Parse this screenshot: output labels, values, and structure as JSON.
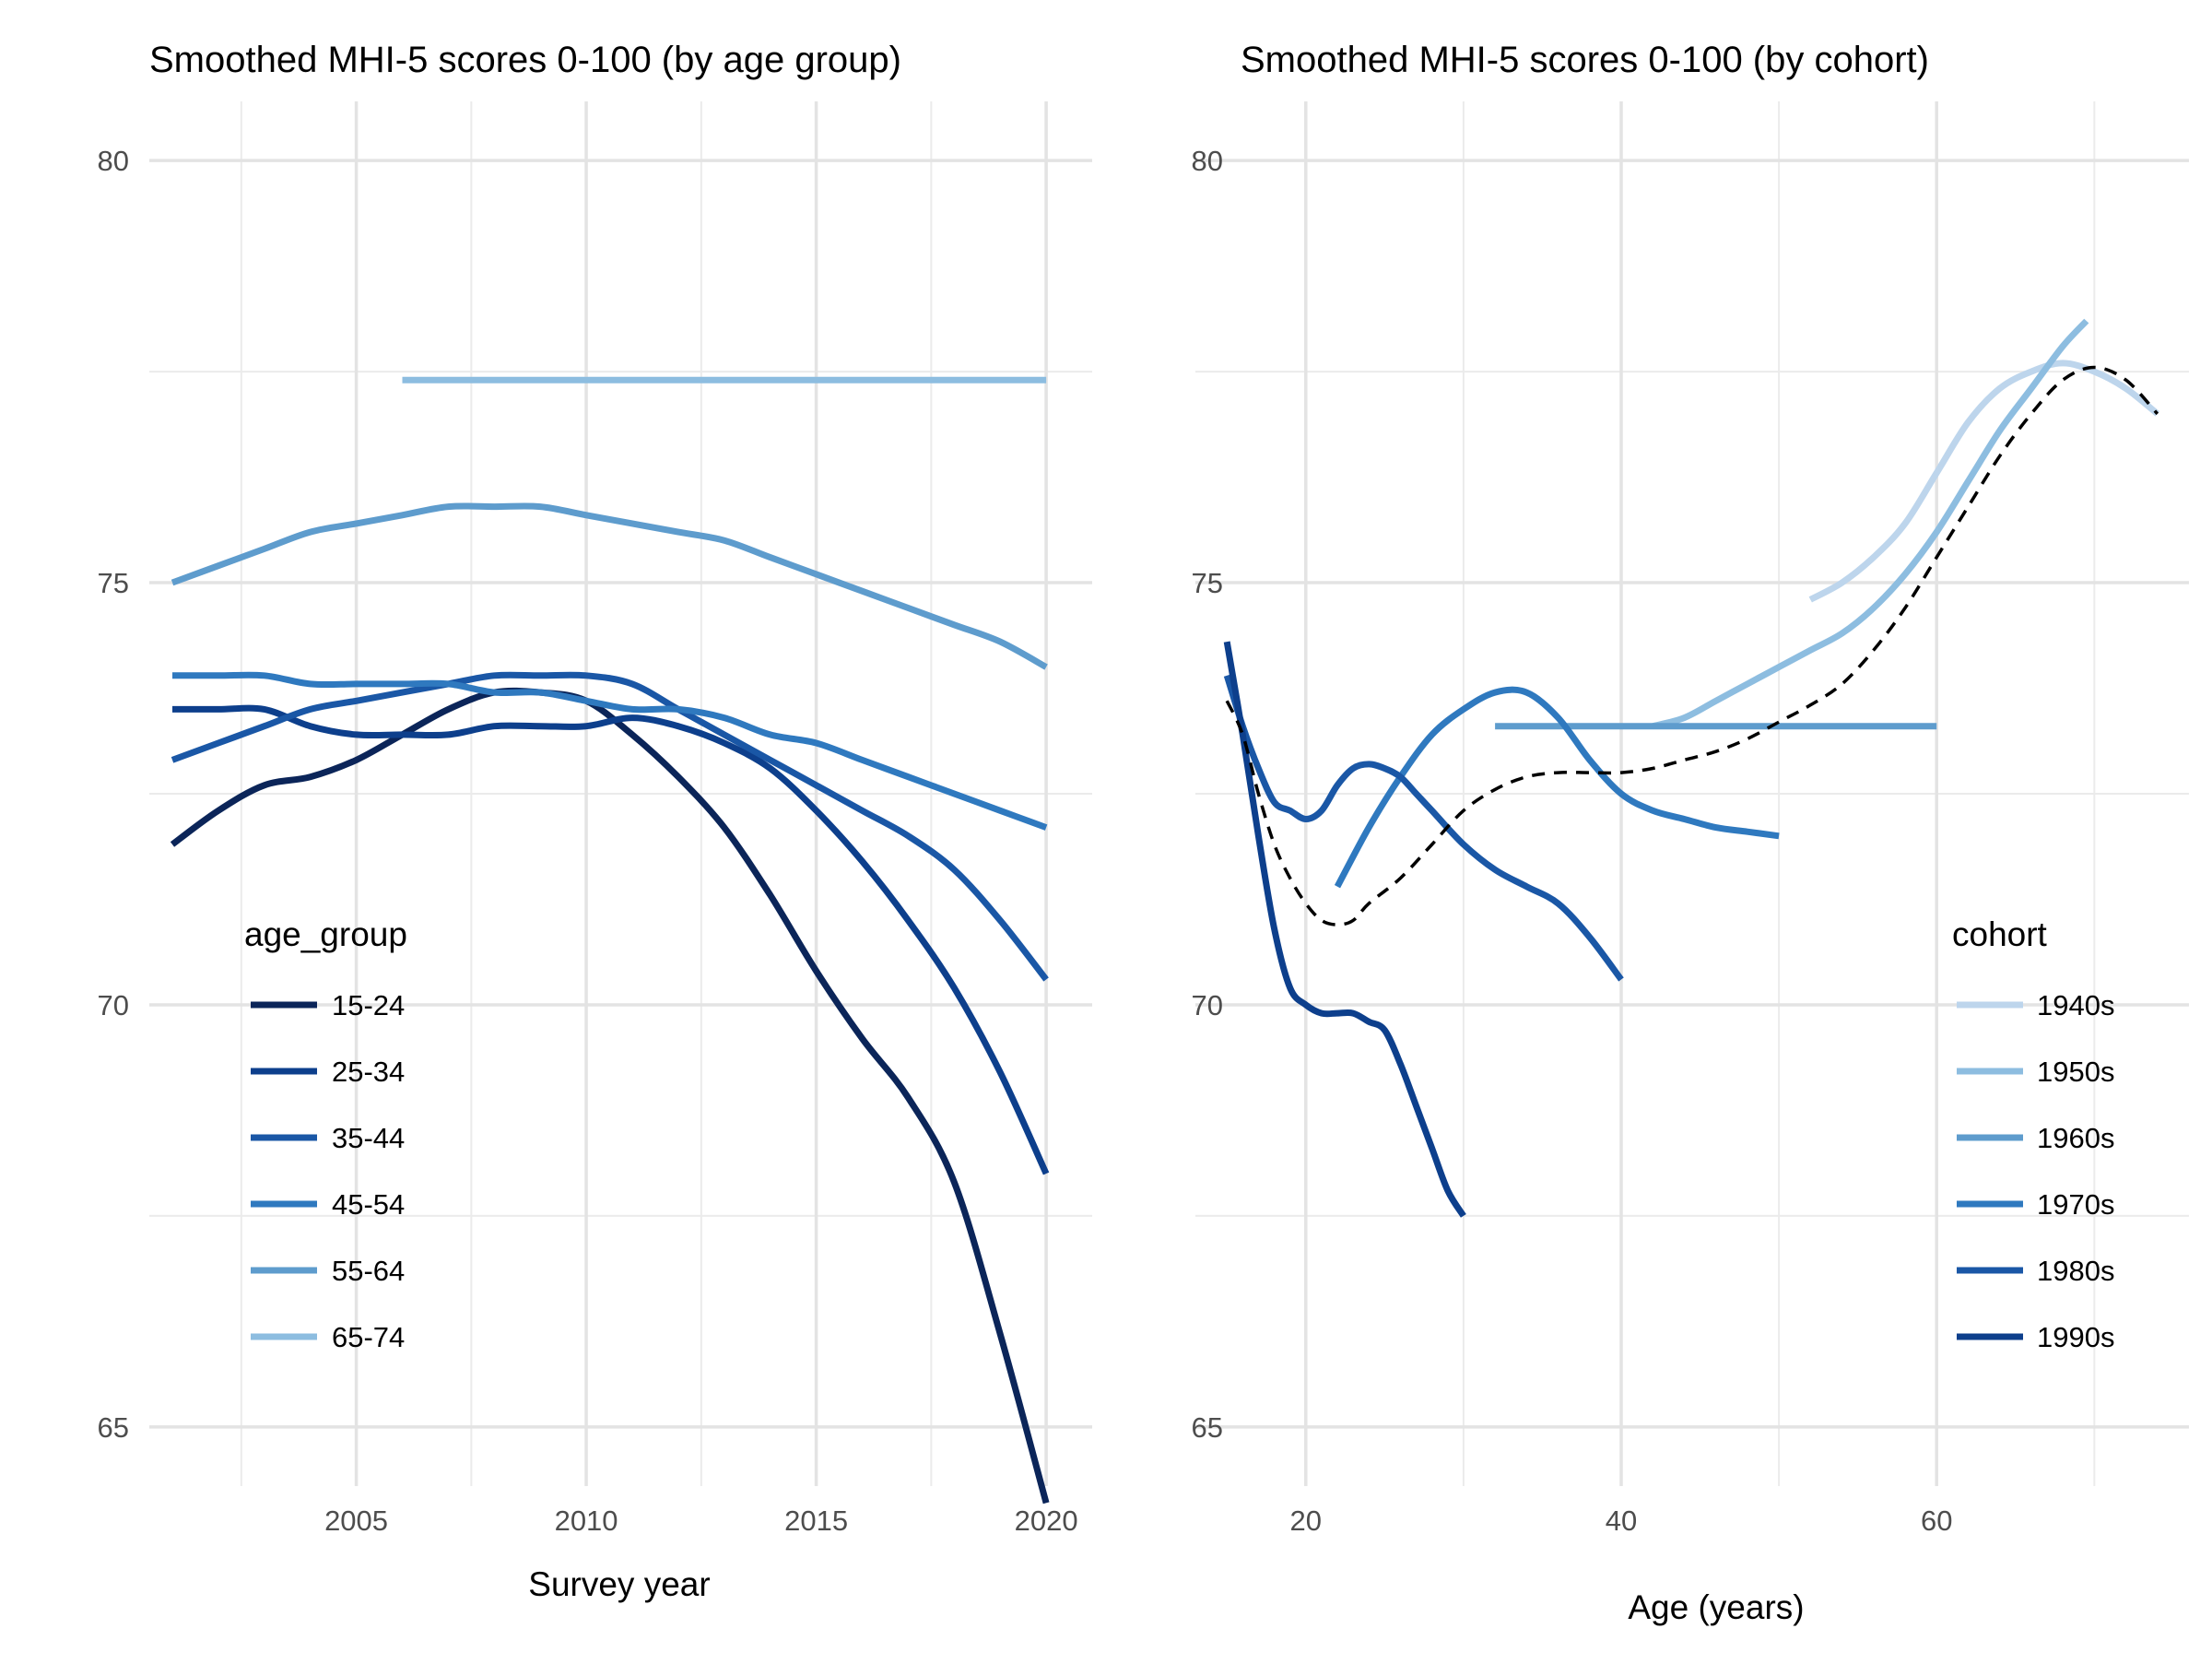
{
  "chart_data": [
    {
      "type": "line",
      "title": "Smoothed MHI-5 scores 0-100 (by age group)",
      "xlabel": "Survey year",
      "ylabel": "",
      "xlim": [
        2000.5,
        2021
      ],
      "ylim": [
        64.3,
        80.7
      ],
      "x_ticks": [
        "2005",
        "2010",
        "2015",
        "2020"
      ],
      "x_tick_values": [
        2005,
        2010,
        2015,
        2020
      ],
      "y_ticks": [
        "65",
        "70",
        "75",
        "80"
      ],
      "y_tick_values": [
        65,
        70,
        75,
        80
      ],
      "grid": true,
      "legend": {
        "title": "age_group",
        "position": "left-bottom"
      },
      "series": [
        {
          "name": "15-24",
          "color": "#0b2559",
          "dashed": false,
          "points": [
            [
              2001,
              71.9
            ],
            [
              2002,
              72.3
            ],
            [
              2003,
              72.6
            ],
            [
              2004,
              72.7
            ],
            [
              2005,
              72.9
            ],
            [
              2006,
              73.2
            ],
            [
              2007,
              73.5
            ],
            [
              2008,
              73.7
            ],
            [
              2009,
              73.7
            ],
            [
              2010,
              73.6
            ],
            [
              2011,
              73.2
            ],
            [
              2012,
              72.7
            ],
            [
              2013,
              72.1
            ],
            [
              2014,
              71.3
            ],
            [
              2015,
              70.4
            ],
            [
              2016,
              69.6
            ],
            [
              2017,
              68.9
            ],
            [
              2018,
              67.9
            ],
            [
              2019,
              66.1
            ],
            [
              2020,
              64.1
            ]
          ]
        },
        {
          "name": "25-34",
          "color": "#0d3f8c",
          "dashed": false,
          "points": [
            [
              2001,
              73.5
            ],
            [
              2002,
              73.5
            ],
            [
              2003,
              73.5
            ],
            [
              2004,
              73.3
            ],
            [
              2005,
              73.2
            ],
            [
              2006,
              73.2
            ],
            [
              2007,
              73.2
            ],
            [
              2008,
              73.3
            ],
            [
              2009,
              73.3
            ],
            [
              2010,
              73.3
            ],
            [
              2011,
              73.4
            ],
            [
              2012,
              73.3
            ],
            [
              2013,
              73.1
            ],
            [
              2014,
              72.8
            ],
            [
              2015,
              72.3
            ],
            [
              2016,
              71.7
            ],
            [
              2017,
              71.0
            ],
            [
              2018,
              70.2
            ],
            [
              2019,
              69.2
            ],
            [
              2020,
              68.0
            ]
          ]
        },
        {
          "name": "35-44",
          "color": "#1a57a6",
          "dashed": false,
          "points": [
            [
              2001,
              72.9
            ],
            [
              2002,
              73.1
            ],
            [
              2003,
              73.3
            ],
            [
              2004,
              73.5
            ],
            [
              2005,
              73.6
            ],
            [
              2006,
              73.7
            ],
            [
              2007,
              73.8
            ],
            [
              2008,
              73.9
            ],
            [
              2009,
              73.9
            ],
            [
              2010,
              73.9
            ],
            [
              2011,
              73.8
            ],
            [
              2012,
              73.5
            ],
            [
              2013,
              73.2
            ],
            [
              2014,
              72.9
            ],
            [
              2015,
              72.6
            ],
            [
              2016,
              72.3
            ],
            [
              2017,
              72.0
            ],
            [
              2018,
              71.6
            ],
            [
              2019,
              71.0
            ],
            [
              2020,
              70.3
            ]
          ]
        },
        {
          "name": "45-54",
          "color": "#2f79bf",
          "dashed": false,
          "points": [
            [
              2001,
              73.9
            ],
            [
              2002,
              73.9
            ],
            [
              2003,
              73.9
            ],
            [
              2004,
              73.8
            ],
            [
              2005,
              73.8
            ],
            [
              2006,
              73.8
            ],
            [
              2007,
              73.8
            ],
            [
              2008,
              73.7
            ],
            [
              2009,
              73.7
            ],
            [
              2010,
              73.6
            ],
            [
              2011,
              73.5
            ],
            [
              2012,
              73.5
            ],
            [
              2013,
              73.4
            ],
            [
              2014,
              73.2
            ],
            [
              2015,
              73.1
            ],
            [
              2016,
              72.9
            ],
            [
              2017,
              72.7
            ],
            [
              2018,
              72.5
            ],
            [
              2019,
              72.3
            ],
            [
              2020,
              72.1
            ]
          ]
        },
        {
          "name": "55-64",
          "color": "#5e9ccd",
          "dashed": false,
          "points": [
            [
              2001,
              75.0
            ],
            [
              2002,
              75.2
            ],
            [
              2003,
              75.4
            ],
            [
              2004,
              75.6
            ],
            [
              2005,
              75.7
            ],
            [
              2006,
              75.8
            ],
            [
              2007,
              75.9
            ],
            [
              2008,
              75.9
            ],
            [
              2009,
              75.9
            ],
            [
              2010,
              75.8
            ],
            [
              2011,
              75.7
            ],
            [
              2012,
              75.6
            ],
            [
              2013,
              75.5
            ],
            [
              2014,
              75.3
            ],
            [
              2015,
              75.1
            ],
            [
              2016,
              74.9
            ],
            [
              2017,
              74.7
            ],
            [
              2018,
              74.5
            ],
            [
              2019,
              74.3
            ],
            [
              2020,
              74.0
            ]
          ]
        },
        {
          "name": "65-74",
          "color": "#8dbde0",
          "dashed": false,
          "points": [
            [
              2006,
              77.4
            ],
            [
              2020,
              77.4
            ]
          ]
        }
      ]
    },
    {
      "type": "line",
      "title": "Smoothed MHI-5 scores 0-100 (by cohort)",
      "xlabel": "Age (years)",
      "ylabel": "",
      "xlim": [
        13,
        76
      ],
      "ylim": [
        64.3,
        80.7
      ],
      "x_ticks": [
        "20",
        "40",
        "60"
      ],
      "x_tick_values": [
        20,
        40,
        60
      ],
      "y_ticks": [
        "65",
        "70",
        "75",
        "80"
      ],
      "y_tick_values": [
        65,
        70,
        75,
        80
      ],
      "grid": true,
      "legend": {
        "title": "cohort",
        "position": "right-bottom"
      },
      "series": [
        {
          "name": "1940s",
          "color": "#bdd5ec",
          "dashed": false,
          "points": [
            [
              52,
              74.8
            ],
            [
              54,
              75.0
            ],
            [
              56,
              75.3
            ],
            [
              58,
              75.7
            ],
            [
              60,
              76.3
            ],
            [
              62,
              76.9
            ],
            [
              64,
              77.3
            ],
            [
              66,
              77.5
            ],
            [
              68,
              77.6
            ],
            [
              70,
              77.5
            ],
            [
              72,
              77.3
            ],
            [
              74,
              77.0
            ]
          ]
        },
        {
          "name": "1950s",
          "color": "#8dbde0",
          "dashed": false,
          "points": [
            [
              42,
              73.3
            ],
            [
              44,
              73.4
            ],
            [
              46,
              73.6
            ],
            [
              48,
              73.8
            ],
            [
              50,
              74.0
            ],
            [
              52,
              74.2
            ],
            [
              54,
              74.4
            ],
            [
              56,
              74.7
            ],
            [
              58,
              75.1
            ],
            [
              60,
              75.6
            ],
            [
              62,
              76.2
            ],
            [
              64,
              76.8
            ],
            [
              66,
              77.3
            ],
            [
              68,
              77.8
            ],
            [
              69.5,
              78.1
            ]
          ]
        },
        {
          "name": "1960s",
          "color": "#5e9ccd",
          "dashed": false,
          "points": [
            [
              32,
              73.3
            ],
            [
              60,
              73.3
            ]
          ]
        },
        {
          "name": "1970s",
          "color": "#2f79bf",
          "dashed": false,
          "points": [
            [
              22,
              71.4
            ],
            [
              24,
              72.1
            ],
            [
              26,
              72.7
            ],
            [
              28,
              73.2
            ],
            [
              30,
              73.5
            ],
            [
              32,
              73.7
            ],
            [
              34,
              73.7
            ],
            [
              36,
              73.4
            ],
            [
              38,
              72.9
            ],
            [
              40,
              72.5
            ],
            [
              42,
              72.3
            ],
            [
              44,
              72.2
            ],
            [
              46,
              72.1
            ],
            [
              48,
              72.05
            ],
            [
              50,
              72.0
            ]
          ]
        },
        {
          "name": "1980s",
          "color": "#1a57a6",
          "dashed": false,
          "points": [
            [
              15,
              73.9
            ],
            [
              16,
              73.3
            ],
            [
              17,
              72.8
            ],
            [
              18,
              72.4
            ],
            [
              19,
              72.3
            ],
            [
              20,
              72.2
            ],
            [
              21,
              72.3
            ],
            [
              22,
              72.6
            ],
            [
              23,
              72.8
            ],
            [
              24,
              72.85
            ],
            [
              25,
              72.8
            ],
            [
              26,
              72.7
            ],
            [
              27,
              72.5
            ],
            [
              28,
              72.3
            ],
            [
              30,
              71.9
            ],
            [
              32,
              71.6
            ],
            [
              34,
              71.4
            ],
            [
              36,
              71.2
            ],
            [
              38,
              70.8
            ],
            [
              40,
              70.3
            ]
          ]
        },
        {
          "name": "1990s",
          "color": "#0d3f8c",
          "dashed": false,
          "points": [
            [
              15,
              74.3
            ],
            [
              16,
              73.2
            ],
            [
              17,
              72.0
            ],
            [
              18,
              70.9
            ],
            [
              19,
              70.2
            ],
            [
              20,
              70.0
            ],
            [
              21,
              69.9
            ],
            [
              22,
              69.9
            ],
            [
              23,
              69.9
            ],
            [
              24,
              69.8
            ],
            [
              25,
              69.7
            ],
            [
              26,
              69.3
            ],
            [
              27,
              68.8
            ],
            [
              28,
              68.3
            ],
            [
              29,
              67.8
            ],
            [
              30,
              67.5
            ]
          ]
        },
        {
          "name": "",
          "color": "#000000",
          "dashed": true,
          "points": [
            [
              15,
              73.6
            ],
            [
              16,
              73.2
            ],
            [
              17,
              72.5
            ],
            [
              18,
              71.9
            ],
            [
              19,
              71.5
            ],
            [
              20,
              71.2
            ],
            [
              21,
              71.0
            ],
            [
              22,
              70.95
            ],
            [
              23,
              71.0
            ],
            [
              24,
              71.2
            ],
            [
              26,
              71.5
            ],
            [
              28,
              71.9
            ],
            [
              30,
              72.3
            ],
            [
              32,
              72.55
            ],
            [
              34,
              72.7
            ],
            [
              36,
              72.75
            ],
            [
              38,
              72.75
            ],
            [
              40,
              72.75
            ],
            [
              42,
              72.8
            ],
            [
              44,
              72.9
            ],
            [
              46,
              73.0
            ],
            [
              48,
              73.15
            ],
            [
              50,
              73.35
            ],
            [
              52,
              73.55
            ],
            [
              54,
              73.8
            ],
            [
              56,
              74.2
            ],
            [
              58,
              74.7
            ],
            [
              60,
              75.3
            ],
            [
              62,
              75.9
            ],
            [
              64,
              76.5
            ],
            [
              66,
              77.0
            ],
            [
              68,
              77.4
            ],
            [
              70,
              77.55
            ],
            [
              72,
              77.4
            ],
            [
              74,
              77.0
            ]
          ]
        }
      ]
    }
  ]
}
